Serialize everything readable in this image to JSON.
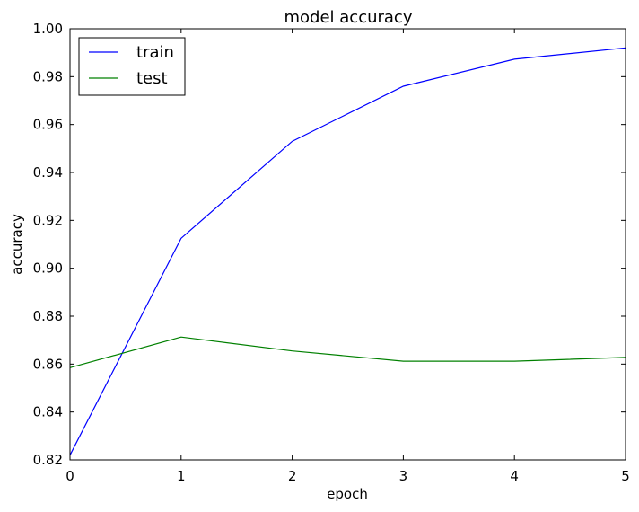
{
  "chart_data": {
    "type": "line",
    "title": "model accuracy",
    "xlabel": "epoch",
    "ylabel": "accuracy",
    "x": [
      0,
      1,
      2,
      3,
      4,
      5
    ],
    "xlim": [
      0,
      5
    ],
    "ylim": [
      0.82,
      1.0
    ],
    "x_ticks": [
      "0",
      "1",
      "2",
      "3",
      "4",
      "5"
    ],
    "y_ticks": [
      "0.82",
      "0.84",
      "0.86",
      "0.88",
      "0.90",
      "0.92",
      "0.94",
      "0.96",
      "0.98",
      "1.00"
    ],
    "grid": false,
    "legend_position": "upper-left",
    "series": [
      {
        "name": "train",
        "color": "#0000ff",
        "values": [
          0.822,
          0.9125,
          0.953,
          0.976,
          0.9873,
          0.992
        ]
      },
      {
        "name": "test",
        "color": "#008000",
        "values": [
          0.8585,
          0.8713,
          0.8655,
          0.8612,
          0.8612,
          0.8628
        ]
      }
    ]
  }
}
